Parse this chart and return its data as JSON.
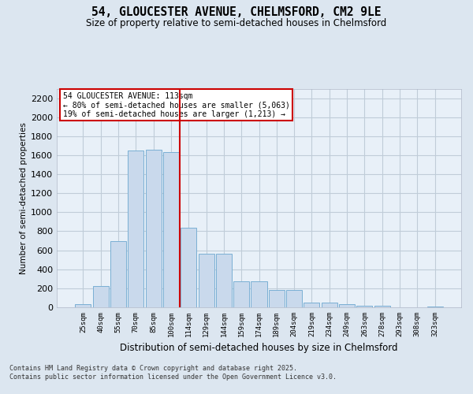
{
  "title1": "54, GLOUCESTER AVENUE, CHELMSFORD, CM2 9LE",
  "title2": "Size of property relative to semi-detached houses in Chelmsford",
  "xlabel": "Distribution of semi-detached houses by size in Chelmsford",
  "ylabel": "Number of semi-detached properties",
  "categories": [
    "25sqm",
    "40sqm",
    "55sqm",
    "70sqm",
    "85sqm",
    "100sqm",
    "114sqm",
    "129sqm",
    "144sqm",
    "159sqm",
    "174sqm",
    "189sqm",
    "204sqm",
    "219sqm",
    "234sqm",
    "249sqm",
    "263sqm",
    "278sqm",
    "293sqm",
    "308sqm",
    "323sqm"
  ],
  "values": [
    30,
    220,
    700,
    1650,
    1660,
    1630,
    840,
    560,
    560,
    270,
    270,
    180,
    185,
    50,
    50,
    30,
    20,
    20,
    0,
    0,
    10
  ],
  "bar_color": "#c9d9ec",
  "bar_edge_color": "#7aafd4",
  "vline_color": "#cc0000",
  "annotation_text": "54 GLOUCESTER AVENUE: 113sqm\n← 80% of semi-detached houses are smaller (5,063)\n19% of semi-detached houses are larger (1,213) →",
  "box_color": "#cc0000",
  "ylim": [
    0,
    2300
  ],
  "yticks": [
    0,
    200,
    400,
    600,
    800,
    1000,
    1200,
    1400,
    1600,
    1800,
    2000,
    2200
  ],
  "footnote1": "Contains HM Land Registry data © Crown copyright and database right 2025.",
  "footnote2": "Contains public sector information licensed under the Open Government Licence v3.0.",
  "bg_color": "#dce6f0",
  "plot_bg_color": "#e8f0f8",
  "grid_color": "#c0ccd8"
}
